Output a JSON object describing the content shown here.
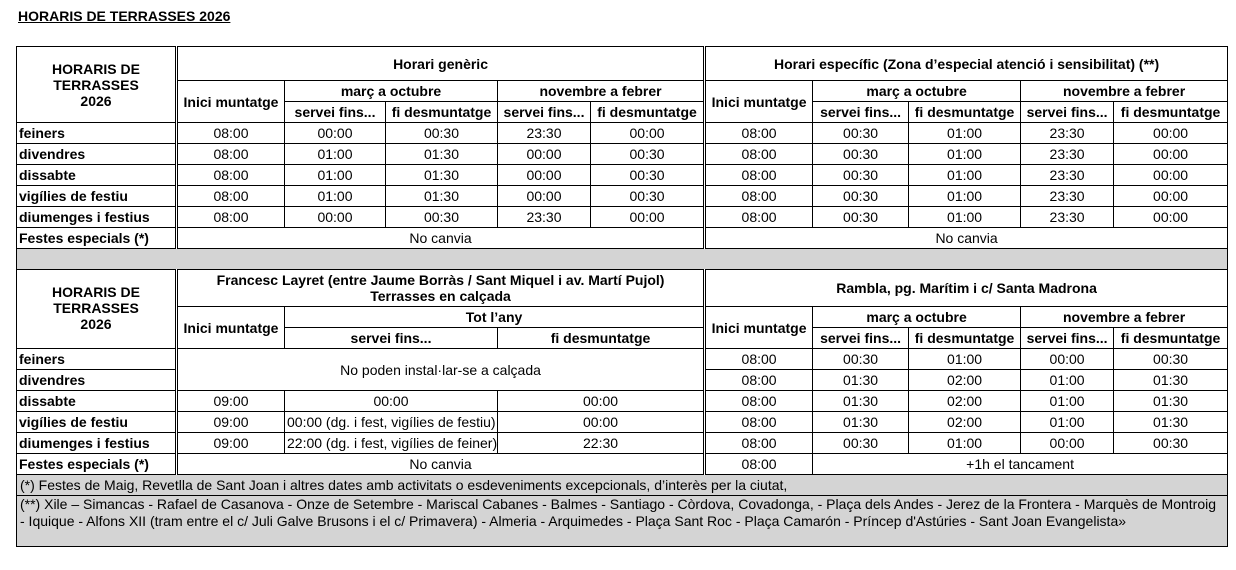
{
  "title": "HORARIS DE TERRASSES 2026",
  "corner": "HORARIS DE\nTERRASSES\n2026",
  "headers": {
    "inici": "Inici muntatge",
    "marc_octubre": "març a octubre",
    "novembre_febrer": "novembre a febrer",
    "servei": "servei fins...",
    "fi": "fi desmuntatge",
    "tot_any": "Tot l’any"
  },
  "row_labels": [
    "feiners",
    "divendres",
    "dissabte",
    "vigílies de festiu",
    "diumenges i festius",
    "Festes especials (*)"
  ],
  "top": {
    "generic_title": "Horari genèric",
    "specific_title": "Horari específic (Zona d’especial atenció i sensibilitat) (**)",
    "generic_rows": [
      [
        "08:00",
        "00:00",
        "00:30",
        "23:30",
        "00:00"
      ],
      [
        "08:00",
        "01:00",
        "01:30",
        "00:00",
        "00:30"
      ],
      [
        "08:00",
        "01:00",
        "01:30",
        "00:00",
        "00:30"
      ],
      [
        "08:00",
        "01:00",
        "01:30",
        "00:00",
        "00:30"
      ],
      [
        "08:00",
        "00:00",
        "00:30",
        "23:30",
        "00:00"
      ]
    ],
    "specific_rows": [
      [
        "08:00",
        "00:30",
        "01:00",
        "23:30",
        "00:00"
      ],
      [
        "08:00",
        "00:30",
        "01:00",
        "23:30",
        "00:00"
      ],
      [
        "08:00",
        "00:30",
        "01:00",
        "23:30",
        "00:00"
      ],
      [
        "08:00",
        "00:30",
        "01:00",
        "23:30",
        "00:00"
      ],
      [
        "08:00",
        "00:30",
        "01:00",
        "23:30",
        "00:00"
      ]
    ],
    "generic_festes": "No canvia",
    "specific_festes": "No canvia"
  },
  "bottom": {
    "layret_title": "Francesc Layret (entre Jaume Borràs / Sant Miquel i av. Martí Pujol)",
    "layret_subtitle": "Terrasses en calçada",
    "layret_no_install": "No poden instal·lar-se a calçada",
    "layret_rows": [
      [
        "09:00",
        "00:00",
        "00:00"
      ],
      [
        "09:00",
        "00:00 (dg. i fest, vigílies de festiu)",
        "00:00"
      ],
      [
        "09:00",
        "22:00 (dg. i fest, vigílies de feiner)",
        "22:30"
      ]
    ],
    "layret_festes": "No canvia",
    "rambla_title": "Rambla, pg. Marítim i c/ Santa Madrona",
    "rambla_rows": [
      [
        "08:00",
        "00:30",
        "01:00",
        "00:00",
        "00:30"
      ],
      [
        "08:00",
        "01:30",
        "02:00",
        "01:00",
        "01:30"
      ],
      [
        "08:00",
        "01:30",
        "02:00",
        "01:00",
        "01:30"
      ],
      [
        "08:00",
        "01:30",
        "02:00",
        "01:00",
        "01:30"
      ],
      [
        "08:00",
        "00:30",
        "01:00",
        "00:00",
        "00:30"
      ]
    ],
    "rambla_festes_inici": "08:00",
    "rambla_festes": "+1h el tancament"
  },
  "footnotes": {
    "note1": "(*) Festes de Maig, Revetlla de Sant Joan i altres dates amb activitats o esdeveniments excepcionals, d’interès per la ciutat,",
    "note2": "(**) Xile – Simancas - Rafael de Casanova - Onze de Setembre - Mariscal Cabanes - Balmes - Santiago - Còrdova, Covadonga, - Plaça dels Andes - Jerez de la Frontera - Marquès de Montroig - Iquique - Alfons XII (tram entre el c/ Juli Galve Brusons i el c/ Primavera) - Almeria - Arquimedes - Plaça Sant Roc - Plaça Camarón - Príncep d'Astúries - Sant Joan Evangelista»"
  }
}
